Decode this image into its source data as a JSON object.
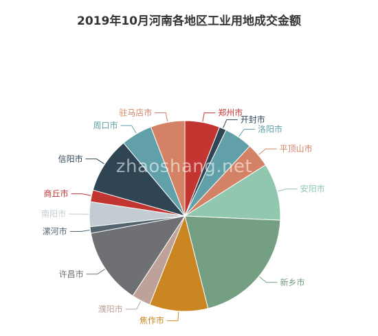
{
  "chart_data": {
    "type": "pie",
    "title": "2019年10月河南各地区工业用地成交金额",
    "slices": [
      {
        "label": "郑州市",
        "value": 5.9,
        "color": "#c23531"
      },
      {
        "label": "开封市",
        "value": 1.2,
        "color": "#2f4554"
      },
      {
        "label": "洛阳市",
        "value": 4.8,
        "color": "#61a0a8"
      },
      {
        "label": "平顶山市",
        "value": 4.1,
        "color": "#d48265"
      },
      {
        "label": "安阳市",
        "value": 9.7,
        "color": "#91c7ae"
      },
      {
        "label": "新乡市",
        "value": 20.4,
        "color": "#749f83"
      },
      {
        "label": "焦作市",
        "value": 9.9,
        "color": "#ca8622"
      },
      {
        "label": "濮阳市",
        "value": 3.2,
        "color": "#bda29a"
      },
      {
        "label": "许昌市",
        "value": 12.9,
        "color": "#6e7074"
      },
      {
        "label": "漯河市",
        "value": 1.1,
        "color": "#546570"
      },
      {
        "label": "南阳市",
        "value": 4.2,
        "color": "#c4ccd3"
      },
      {
        "label": "商丘市",
        "value": 2.0,
        "color": "#c23531"
      },
      {
        "label": "信阳市",
        "value": 9.5,
        "color": "#2f4554"
      },
      {
        "label": "周口市",
        "value": 5.3,
        "color": "#61a0a8"
      },
      {
        "label": "驻马店市",
        "value": 5.8,
        "color": "#d48265"
      }
    ]
  },
  "watermark": "zhaoshang.net"
}
